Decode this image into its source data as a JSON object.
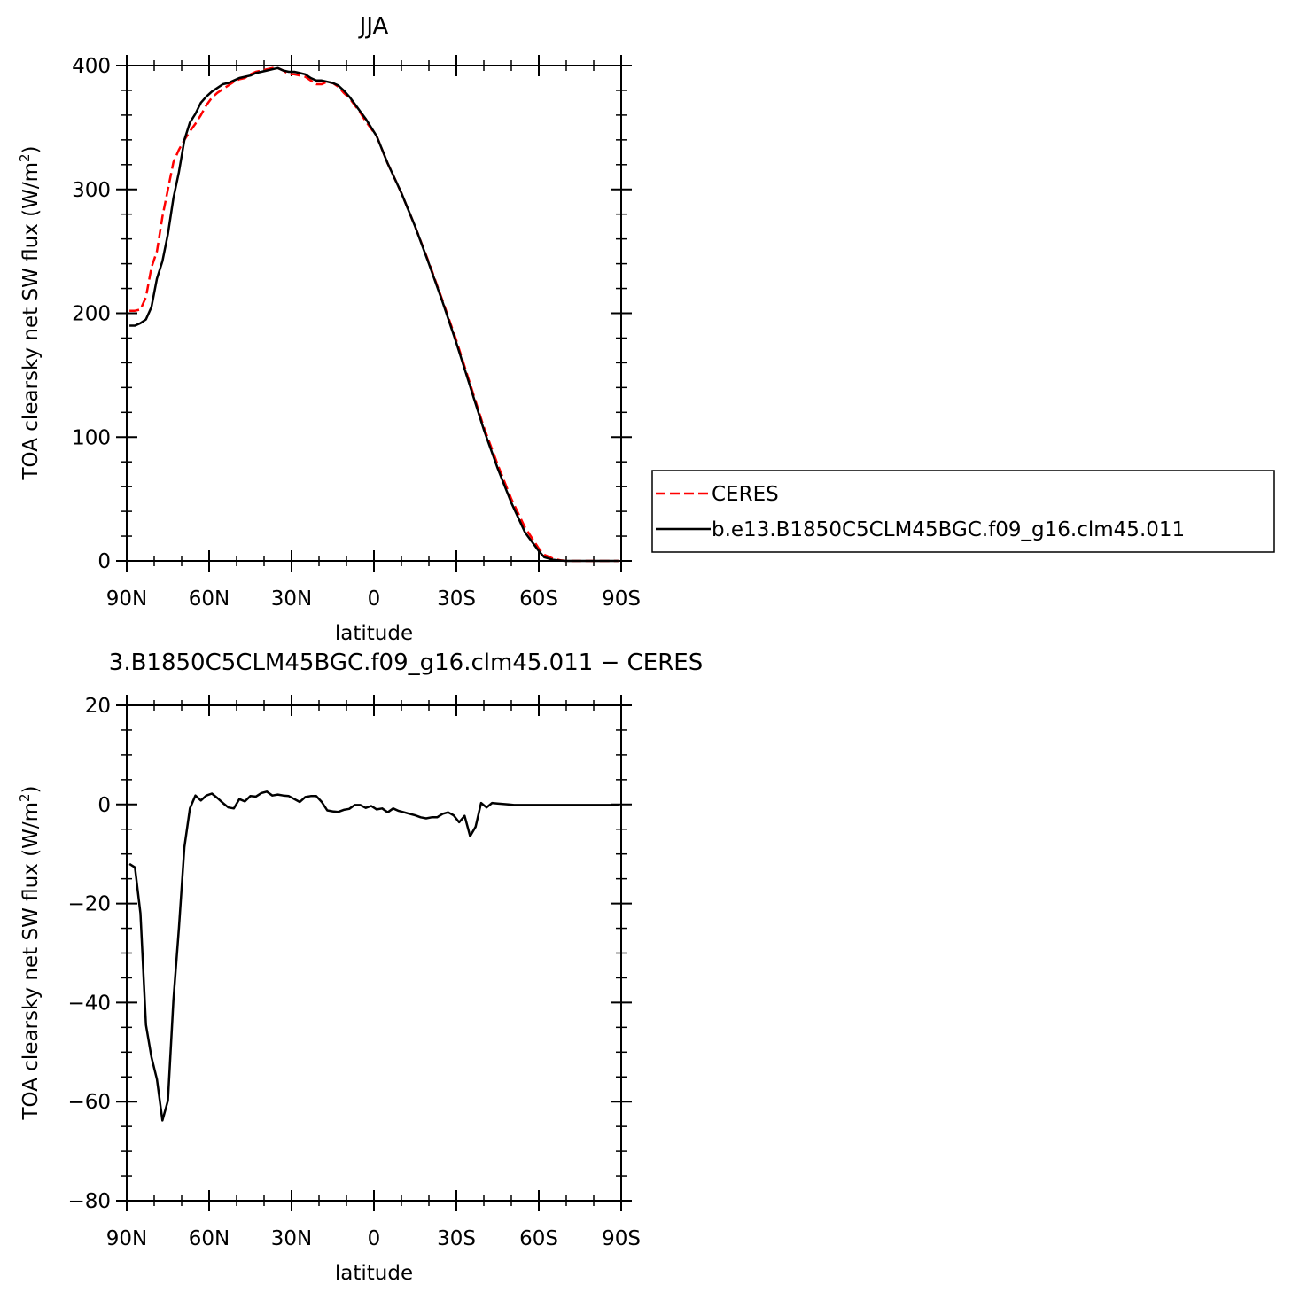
{
  "chart_data": [
    {
      "type": "line",
      "title": "JJA",
      "xlabel": "latitude",
      "ylabel": "TOA clearsky net SW flux (W/m²)",
      "ylabel_prefix": "TOA clearsky net SW flux (W/m",
      "ylabel_sup": "2",
      "ylabel_suffix": ")",
      "xlim": [
        90,
        -90
      ],
      "ylim": [
        0,
        400
      ],
      "xticks": [
        90,
        60,
        30,
        0,
        -30,
        -60,
        -90
      ],
      "xtick_labels": [
        "90N",
        "60N",
        "30N",
        "0",
        "30S",
        "60S",
        "90S"
      ],
      "yticks": [
        0,
        100,
        200,
        300,
        400
      ],
      "ytick_labels": [
        "0",
        "100",
        "200",
        "300",
        "400"
      ],
      "legend_position": "right",
      "series": [
        {
          "name": "CERES",
          "color": "#ff0000",
          "dash": "dashed",
          "x": [
            89,
            87,
            85,
            83,
            81,
            79,
            77,
            75,
            73,
            71,
            69,
            67,
            65,
            63,
            61,
            59,
            57,
            55,
            53,
            51,
            49,
            47,
            45,
            43,
            41,
            39,
            37,
            35,
            33,
            31,
            29,
            27,
            25,
            23,
            21,
            19,
            17,
            15,
            13,
            11,
            9,
            7,
            5,
            3,
            1,
            -1,
            -5,
            -10,
            -15,
            -20,
            -25,
            -30,
            -35,
            -40,
            -45,
            -50,
            -55,
            -60,
            -62,
            -65,
            -68,
            -70,
            -75,
            -80,
            -85,
            -89
          ],
          "y": [
            202,
            202,
            203,
            213,
            237,
            250,
            278,
            300,
            322,
            332,
            340,
            347,
            353,
            360,
            368,
            374,
            378,
            381,
            384,
            387,
            389,
            390,
            393,
            395,
            396,
            397,
            398,
            398,
            396,
            393,
            393,
            392,
            391,
            388,
            385,
            385,
            387,
            386,
            383,
            378,
            374,
            368,
            362,
            355,
            349,
            343,
            321,
            297,
            270,
            241,
            210,
            178,
            143,
            108,
            78,
            50,
            27,
            10,
            5,
            2,
            0.5,
            0,
            0,
            0,
            0,
            0
          ]
        },
        {
          "name": "b.e13.B1850C5CLM45BGC.f09_g16.clm45.011",
          "color": "#000000",
          "dash": "solid",
          "x": [
            89,
            87,
            85,
            83,
            81,
            79,
            77,
            75,
            73,
            71,
            69,
            67,
            65,
            63,
            61,
            59,
            57,
            55,
            53,
            51,
            49,
            47,
            45,
            43,
            41,
            39,
            37,
            35,
            33,
            31,
            29,
            27,
            25,
            23,
            21,
            19,
            17,
            15,
            13,
            11,
            9,
            7,
            5,
            3,
            1,
            -1,
            -5,
            -10,
            -15,
            -20,
            -25,
            -30,
            -35,
            -40,
            -45,
            -50,
            -55,
            -60,
            -62,
            -65,
            -68,
            -70,
            -75,
            -80,
            -85,
            -89
          ],
          "y": [
            190,
            190,
            192,
            195,
            205,
            228,
            242,
            264,
            293,
            314,
            340,
            354,
            361,
            370,
            375,
            379,
            382,
            385,
            386,
            388,
            390,
            391,
            392,
            394,
            395,
            396,
            397,
            398,
            396,
            395,
            395,
            394,
            393,
            390,
            388,
            388,
            387,
            386,
            384,
            380,
            375,
            369,
            363,
            357,
            350,
            343,
            321,
            297,
            270,
            240,
            209,
            176,
            141,
            106,
            75,
            47,
            23,
            8,
            3,
            1,
            0.3,
            0,
            0,
            0,
            0,
            0
          ]
        }
      ]
    },
    {
      "type": "line",
      "title": "3.B1850C5CLM45BGC.f09_g16.clm45.011  −  CERES",
      "xlabel": "latitude",
      "ylabel": "TOA clearsky net SW flux (W/m²)",
      "ylabel_prefix": "TOA clearsky net SW flux (W/m",
      "ylabel_sup": "2",
      "ylabel_suffix": ")",
      "xlim": [
        90,
        -90
      ],
      "ylim": [
        -80,
        20
      ],
      "xticks": [
        90,
        60,
        30,
        0,
        -30,
        -60,
        -90
      ],
      "xtick_labels": [
        "90N",
        "60N",
        "30N",
        "0",
        "30S",
        "60S",
        "90S"
      ],
      "yticks": [
        -80,
        -60,
        -40,
        -20,
        0,
        20
      ],
      "ytick_labels": [
        "−80",
        "−60",
        "−40",
        "−20",
        "0",
        "20"
      ],
      "series": [
        {
          "color": "#000000",
          "dash": "solid",
          "x": [
            89,
            87,
            85,
            83,
            81,
            79,
            77,
            75,
            73,
            71,
            69,
            67,
            65,
            63,
            61,
            59,
            57,
            55,
            53,
            51,
            49,
            47,
            45,
            43,
            41,
            39,
            37,
            35,
            33,
            31,
            29,
            27,
            25,
            23,
            21,
            19,
            17,
            15,
            13,
            11,
            9,
            7,
            5,
            3,
            1,
            -1,
            -3,
            -5,
            -7,
            -9,
            -11,
            -13,
            -15,
            -17,
            -19,
            -21,
            -23,
            -25,
            -27,
            -29,
            -31,
            -33,
            -35,
            -37,
            -39,
            -41,
            -43,
            -45,
            -47,
            -49,
            -51,
            -53,
            -55,
            -57,
            -59,
            -61,
            -63,
            -65,
            -67,
            -69,
            -71,
            -73,
            -75,
            -77,
            -79,
            -81,
            -83,
            -85,
            -87,
            -89
          ],
          "y": [
            -12,
            -12.7,
            -22,
            -44.5,
            -51,
            -55.5,
            -63.8,
            -59.8,
            -39.5,
            -25,
            -8.6,
            -0.8,
            1.8,
            0.8,
            1.8,
            2.2,
            1.3,
            0.3,
            -0.6,
            -0.8,
            1.1,
            0.6,
            1.7,
            1.6,
            2.3,
            2.6,
            1.8,
            2.0,
            1.8,
            1.7,
            1.1,
            0.5,
            1.5,
            1.7,
            1.7,
            0.5,
            -1.2,
            -1.4,
            -1.5,
            -1.1,
            -0.9,
            -0.1,
            -0.1,
            -0.7,
            -0.3,
            -1.0,
            -0.8,
            -1.6,
            -0.8,
            -1.3,
            -1.6,
            -1.9,
            -2.2,
            -2.6,
            -2.8,
            -2.6,
            -2.6,
            -1.9,
            -1.6,
            -2.2,
            -3.6,
            -2.3,
            -6.4,
            -4.5,
            0.3,
            -0.6,
            0.3,
            0.2,
            0.1,
            0.0,
            -0.1,
            -0.1,
            -0.1,
            -0.1,
            -0.1,
            -0.1,
            -0.1,
            -0.1,
            -0.1,
            -0.1,
            -0.1,
            -0.1,
            -0.1,
            -0.1,
            -0.1,
            -0.1,
            -0.1,
            -0.1,
            -0.1,
            -0.1
          ]
        }
      ]
    }
  ]
}
